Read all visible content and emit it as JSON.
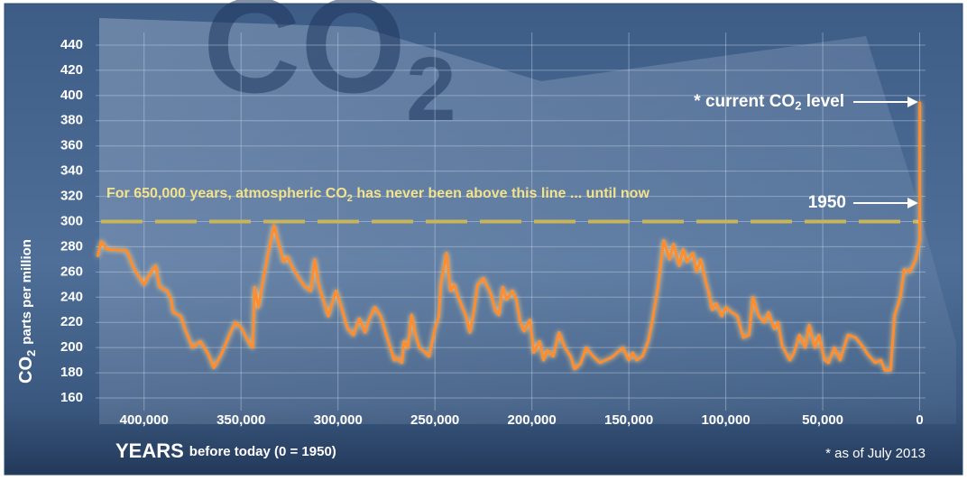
{
  "chart_data": {
    "type": "line",
    "title": [
      "CO",
      "2"
    ],
    "ylabel": [
      "CO",
      "2",
      "parts per million"
    ],
    "xlabel": [
      "YEARS",
      "before today (0 = 1950)"
    ],
    "note": [
      "For 650,000 years, atmospheric CO",
      "2",
      " has never been above this line ... until now"
    ],
    "current_label": [
      "* current CO",
      "2",
      " level"
    ],
    "year_label": "1950",
    "footnote": "* as of July 2013",
    "threshold": 300,
    "color": "#ff8c2e",
    "x": [
      424000,
      422000,
      419000,
      409000,
      405000,
      400000,
      398000,
      394000,
      392000,
      388000,
      386000,
      385000,
      381000,
      379000,
      375000,
      371000,
      367000,
      364000,
      360000,
      356000,
      353000,
      350000,
      346000,
      344000,
      343000,
      341000,
      339000,
      336000,
      333000,
      331000,
      328000,
      326000,
      323000,
      320000,
      317000,
      314000,
      312000,
      310000,
      308000,
      305000,
      301000,
      299000,
      295000,
      292000,
      289000,
      286000,
      284000,
      281000,
      278000,
      275000,
      273000,
      271000,
      270000,
      267000,
      266000,
      264000,
      262000,
      260000,
      258000,
      255000,
      253000,
      250000,
      248000,
      247000,
      244000,
      242000,
      240000,
      238000,
      234000,
      232000,
      230000,
      228000,
      225000,
      221000,
      219000,
      217000,
      215000,
      213000,
      210000,
      208000,
      206000,
      204000,
      201000,
      199000,
      196000,
      194000,
      192000,
      189000,
      186000,
      183000,
      180000,
      178000,
      175000,
      172000,
      169000,
      165000,
      159000,
      153000,
      150000,
      148000,
      146000,
      143000,
      140000,
      138000,
      135000,
      132000,
      129000,
      127000,
      124000,
      122000,
      120000,
      117000,
      115000,
      113000,
      110000,
      109000,
      107000,
      105000,
      102000,
      100000,
      97000,
      94000,
      91000,
      88000,
      86000,
      83000,
      80000,
      78000,
      75000,
      73000,
      71000,
      67000,
      65000,
      62000,
      59000,
      57000,
      54000,
      52000,
      49000,
      47000,
      44000,
      41000,
      37000,
      33000,
      29000,
      27000,
      23000,
      20000,
      18000,
      15000,
      13000,
      10000,
      8000,
      5000,
      2000,
      0,
      -63
    ],
    "values": [
      272,
      284,
      278,
      277,
      262,
      250,
      256,
      265,
      248,
      245,
      238,
      228,
      225,
      215,
      200,
      205,
      195,
      184,
      195,
      210,
      220,
      216,
      204,
      200,
      248,
      232,
      250,
      275,
      297,
      285,
      268,
      272,
      262,
      255,
      248,
      245,
      270,
      250,
      240,
      225,
      245,
      236,
      215,
      210,
      223,
      212,
      222,
      232,
      225,
      210,
      200,
      190,
      192,
      188,
      205,
      200,
      226,
      210,
      200,
      196,
      193,
      215,
      225,
      250,
      275,
      245,
      250,
      240,
      225,
      212,
      228,
      250,
      255,
      242,
      230,
      226,
      248,
      238,
      245,
      238,
      220,
      213,
      222,
      196,
      205,
      190,
      198,
      193,
      212,
      200,
      193,
      183,
      187,
      200,
      194,
      188,
      192,
      200,
      190,
      196,
      190,
      193,
      205,
      220,
      248,
      285,
      270,
      282,
      265,
      278,
      268,
      275,
      260,
      270,
      250,
      245,
      230,
      235,
      225,
      232,
      228,
      225,
      208,
      210,
      240,
      225,
      220,
      228,
      215,
      220,
      202,
      190,
      195,
      210,
      200,
      218,
      200,
      210,
      190,
      188,
      200,
      190,
      210,
      208,
      200,
      195,
      188,
      190,
      182,
      182,
      225,
      240,
      262,
      260,
      270,
      285,
      395
    ],
    "xlim": [
      425000,
      -3000
    ],
    "ylim": [
      150,
      450
    ],
    "xticks": [
      {
        "value": 400000,
        "label": "400,000"
      },
      {
        "value": 350000,
        "label": "350,000"
      },
      {
        "value": 300000,
        "label": "300,000"
      },
      {
        "value": 250000,
        "label": "250,000"
      },
      {
        "value": 200000,
        "label": "200,000"
      },
      {
        "value": 150000,
        "label": "150,000"
      },
      {
        "value": 100000,
        "label": "100,000"
      },
      {
        "value": 50000,
        "label": "50,000"
      },
      0
    ],
    "yticks": [
      160,
      180,
      200,
      220,
      240,
      260,
      280,
      300,
      320,
      340,
      360,
      380,
      400,
      420,
      440
    ],
    "grid": true
  }
}
